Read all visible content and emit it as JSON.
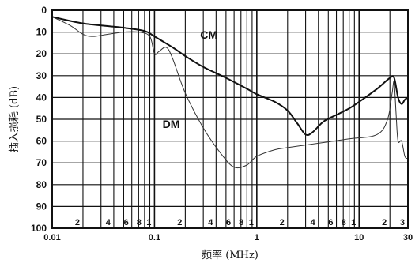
{
  "chart_data": {
    "type": "line",
    "title": "",
    "xlabel": "频率 (MHz)",
    "ylabel": "插入损耗 (dB)",
    "x_scale": "log",
    "xlim": [
      0.01,
      30
    ],
    "ylim": [
      0,
      100
    ],
    "y_inverted": true,
    "grid": true,
    "x_tick_labels": [
      "0.01",
      "0.1",
      "1",
      "10",
      "30"
    ],
    "x_tick_values": [
      0.01,
      0.1,
      1,
      10,
      30
    ],
    "x_minor_labels": [
      {
        "value": 0.02,
        "label": "2"
      },
      {
        "value": 0.04,
        "label": "4"
      },
      {
        "value": 0.06,
        "label": "6"
      },
      {
        "value": 0.08,
        "label": "8"
      },
      {
        "value": 0.1,
        "label": "1"
      },
      {
        "value": 0.2,
        "label": "2"
      },
      {
        "value": 0.4,
        "label": "4"
      },
      {
        "value": 0.6,
        "label": "6"
      },
      {
        "value": 0.8,
        "label": "8"
      },
      {
        "value": 1,
        "label": "1"
      },
      {
        "value": 2,
        "label": "2"
      },
      {
        "value": 4,
        "label": "4"
      },
      {
        "value": 6,
        "label": "6"
      },
      {
        "value": 8,
        "label": "8"
      },
      {
        "value": 10,
        "label": "1"
      },
      {
        "value": 20,
        "label": "2"
      },
      {
        "value": 30,
        "label": "3"
      }
    ],
    "y_ticks": [
      0,
      10,
      20,
      30,
      40,
      50,
      60,
      70,
      80,
      90,
      100
    ],
    "series": [
      {
        "name": "CM",
        "color": "#111111",
        "width": 2,
        "label_at": {
          "x": 0.28,
          "y": 13
        },
        "points": [
          [
            0.01,
            3
          ],
          [
            0.02,
            6
          ],
          [
            0.05,
            8
          ],
          [
            0.08,
            9.5
          ],
          [
            0.1,
            12
          ],
          [
            0.15,
            17
          ],
          [
            0.2,
            21
          ],
          [
            0.3,
            26
          ],
          [
            0.5,
            31
          ],
          [
            0.8,
            36
          ],
          [
            1,
            38.5
          ],
          [
            1.5,
            42
          ],
          [
            2,
            46
          ],
          [
            2.5,
            52
          ],
          [
            3,
            57
          ],
          [
            3.5,
            56
          ],
          [
            4.5,
            51
          ],
          [
            6,
            48
          ],
          [
            8,
            45
          ],
          [
            10,
            42
          ],
          [
            15,
            36
          ],
          [
            20,
            31
          ],
          [
            22,
            31
          ],
          [
            24,
            40
          ],
          [
            26,
            43
          ],
          [
            28,
            41
          ],
          [
            30,
            40
          ]
        ]
      },
      {
        "name": "DM",
        "color": "#333333",
        "width": 1,
        "label_at": {
          "x": 0.12,
          "y": 54
        },
        "points": [
          [
            0.01,
            3
          ],
          [
            0.015,
            7
          ],
          [
            0.02,
            11
          ],
          [
            0.025,
            12
          ],
          [
            0.035,
            11
          ],
          [
            0.05,
            10
          ],
          [
            0.07,
            10
          ],
          [
            0.09,
            12
          ],
          [
            0.1,
            20
          ],
          [
            0.11,
            19
          ],
          [
            0.13,
            17
          ],
          [
            0.15,
            22
          ],
          [
            0.2,
            38
          ],
          [
            0.3,
            54
          ],
          [
            0.45,
            66
          ],
          [
            0.6,
            72
          ],
          [
            0.8,
            71
          ],
          [
            1,
            67
          ],
          [
            1.5,
            64
          ],
          [
            2,
            63
          ],
          [
            4,
            61
          ],
          [
            8,
            59
          ],
          [
            15,
            57
          ],
          [
            19,
            50
          ],
          [
            21,
            38
          ],
          [
            22,
            33
          ],
          [
            23,
            48
          ],
          [
            24,
            60
          ],
          [
            26,
            60
          ],
          [
            28,
            67
          ],
          [
            30,
            68
          ]
        ]
      }
    ]
  }
}
